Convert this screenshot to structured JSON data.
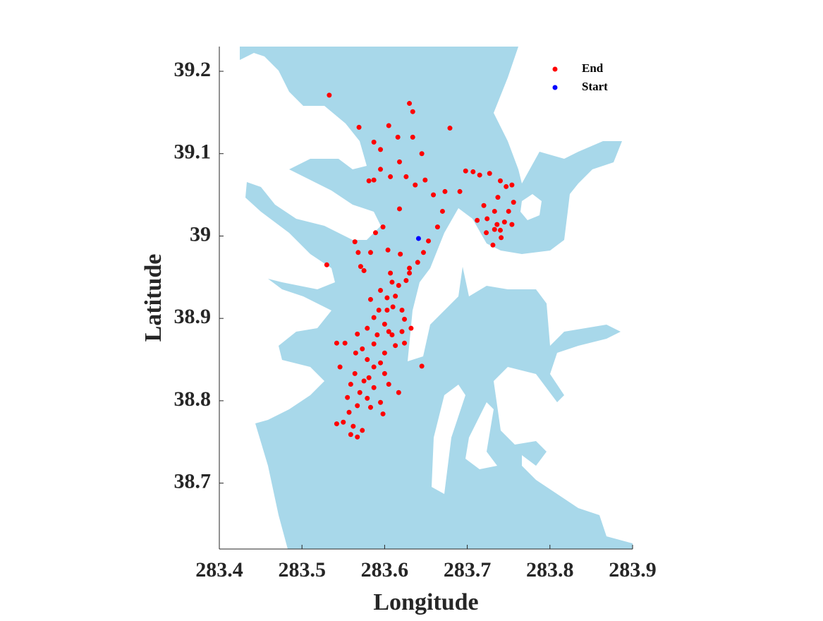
{
  "chart_data": {
    "type": "scatter",
    "xlabel": "Longitude",
    "ylabel": "Latitude",
    "xlim": [
      283.4,
      283.9
    ],
    "ylim": [
      38.62,
      39.23
    ],
    "xticks": [
      283.4,
      283.5,
      283.6,
      283.7,
      283.8,
      283.9
    ],
    "yticks": [
      38.7,
      38.8,
      38.9,
      39,
      39.1,
      39.2
    ],
    "legend": "upper right",
    "series": [
      {
        "name": "End",
        "color": "#ff0000",
        "x": [
          283.533,
          283.569,
          283.605,
          283.63,
          283.634,
          283.679,
          283.587,
          283.595,
          283.616,
          283.634,
          283.645,
          283.618,
          283.595,
          283.607,
          283.581,
          283.587,
          283.626,
          283.637,
          283.649,
          283.659,
          283.673,
          283.691,
          283.618,
          283.67,
          283.664,
          283.653,
          283.647,
          283.64,
          283.63,
          283.619,
          283.604,
          283.598,
          283.589,
          283.564,
          283.568,
          283.583,
          283.571,
          283.575,
          283.53,
          283.607,
          283.609,
          283.595,
          283.617,
          283.626,
          283.583,
          283.603,
          283.61,
          283.593,
          283.621,
          283.587,
          283.624,
          283.6,
          283.579,
          283.632,
          283.609,
          283.567,
          283.542,
          283.552,
          283.587,
          283.613,
          283.624,
          283.565,
          283.6,
          283.579,
          283.546,
          283.645,
          283.595,
          283.564,
          283.581,
          283.6,
          283.559,
          283.587,
          283.57,
          283.617,
          283.579,
          283.555,
          283.595,
          283.567,
          283.557,
          283.583,
          283.598,
          283.55,
          283.542,
          283.562,
          283.573,
          283.559,
          283.567,
          283.698,
          283.707,
          283.715,
          283.727,
          283.74,
          283.747,
          283.754,
          283.737,
          283.756,
          283.72,
          283.733,
          283.724,
          283.712,
          283.745,
          283.754,
          283.733,
          283.723,
          283.74,
          283.741,
          283.731,
          283.75,
          283.736,
          283.613,
          283.603,
          283.605,
          283.591,
          283.573,
          283.587,
          283.575,
          283.605,
          283.63,
          283.621
        ],
        "values": [
          39.171,
          39.132,
          39.134,
          39.161,
          39.151,
          39.131,
          39.114,
          39.105,
          39.12,
          39.12,
          39.1,
          39.09,
          39.081,
          39.072,
          39.067,
          39.068,
          39.072,
          39.062,
          39.068,
          39.05,
          39.054,
          39.054,
          39.033,
          39.03,
          39.011,
          38.994,
          38.98,
          38.968,
          38.961,
          38.978,
          38.983,
          39.011,
          39.004,
          38.993,
          38.98,
          38.98,
          38.963,
          38.958,
          38.965,
          38.955,
          38.944,
          38.934,
          38.94,
          38.946,
          38.923,
          38.925,
          38.914,
          38.91,
          38.91,
          38.901,
          38.899,
          38.893,
          38.888,
          38.888,
          38.88,
          38.881,
          38.87,
          38.87,
          38.869,
          38.867,
          38.87,
          38.858,
          38.858,
          38.85,
          38.841,
          38.842,
          38.846,
          38.833,
          38.828,
          38.833,
          38.82,
          38.816,
          38.81,
          38.81,
          38.803,
          38.804,
          38.798,
          38.794,
          38.786,
          38.792,
          38.784,
          38.774,
          38.772,
          38.769,
          38.764,
          38.759,
          38.756,
          39.079,
          39.078,
          39.074,
          39.076,
          39.067,
          39.06,
          39.062,
          39.047,
          39.041,
          39.037,
          39.03,
          39.021,
          39.019,
          39.017,
          39.014,
          39.008,
          39.004,
          39.007,
          38.998,
          38.989,
          39.03,
          39.014,
          38.927,
          38.91,
          38.884,
          38.88,
          38.863,
          38.841,
          38.824,
          38.82,
          38.955,
          38.884
        ]
      },
      {
        "name": "Start",
        "color": "#0000ff",
        "x": [
          283.641
        ],
        "values": [
          38.997
        ]
      }
    ]
  }
}
